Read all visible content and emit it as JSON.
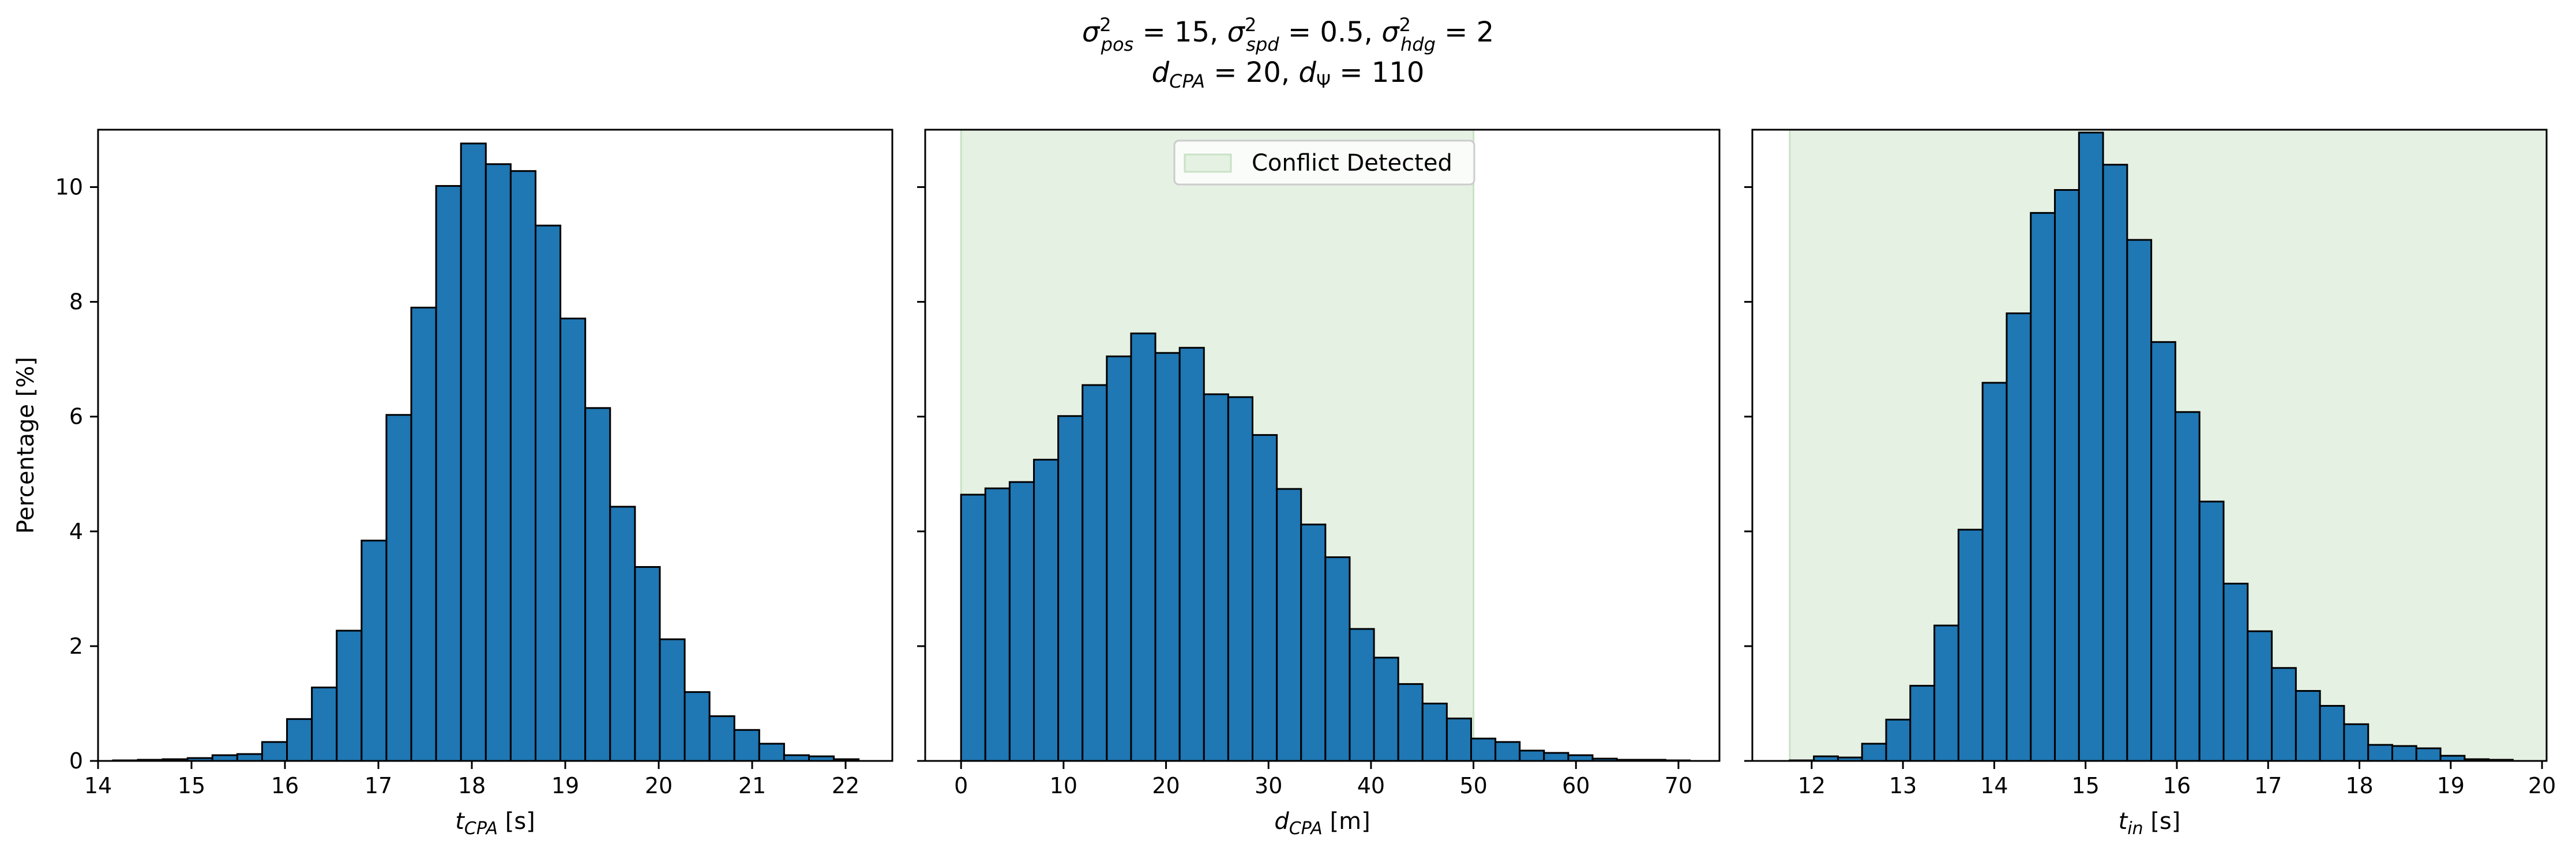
{
  "figure": {
    "title_line1": "σ²pos = 15, σ²spd = 0.5, σ²hdg = 2",
    "title_line2": "dCPA = 20, dΨ = 110"
  },
  "colors": {
    "bar_fill": "#1f77b4",
    "bar_edge": "#000000",
    "shade_fill": "#e5f1e3",
    "shade_edge": "#c9e2c6"
  },
  "chart_data": [
    {
      "type": "bar",
      "name": "tcpa-histogram",
      "xlabel": "tCPA [s]",
      "ylabel": "Percentage [%]",
      "xlim": [
        14.0,
        22.5
      ],
      "ylim": [
        0,
        11
      ],
      "xticks": [
        14,
        15,
        16,
        17,
        18,
        19,
        20,
        21,
        22
      ],
      "yticks": [
        0,
        2,
        4,
        6,
        8,
        10
      ],
      "bin_start": 14.16,
      "bin_width": 0.266,
      "values": [
        0.01,
        0.02,
        0.03,
        0.05,
        0.1,
        0.12,
        0.33,
        0.73,
        1.28,
        2.27,
        3.84,
        6.03,
        7.9,
        10.02,
        10.76,
        10.4,
        10.28,
        9.33,
        7.71,
        6.15,
        4.43,
        3.38,
        2.12,
        1.2,
        0.78,
        0.54,
        0.3,
        0.1,
        0.08,
        0.03
      ],
      "shade": null
    },
    {
      "type": "bar",
      "name": "dcpa-histogram",
      "xlabel": "dCPA [m]",
      "ylabel": "",
      "xlim": [
        -3.5,
        74.0
      ],
      "ylim": [
        0,
        11
      ],
      "xticks": [
        0,
        10,
        20,
        30,
        40,
        50,
        60,
        70
      ],
      "yticks": [
        0,
        2,
        4,
        6,
        8,
        10
      ],
      "bin_start": 0.0,
      "bin_width": 2.37,
      "values": [
        4.64,
        4.75,
        4.86,
        5.25,
        6.01,
        6.55,
        7.05,
        7.45,
        7.11,
        7.2,
        6.39,
        6.34,
        5.68,
        4.74,
        4.12,
        3.55,
        2.3,
        1.8,
        1.34,
        1.0,
        0.74,
        0.39,
        0.33,
        0.18,
        0.14,
        0.1,
        0.04,
        0.02,
        0.02,
        0.01
      ],
      "shade": {
        "start": 0,
        "end": 50,
        "label": "Conflict Detected"
      }
    },
    {
      "type": "bar",
      "name": "tin-histogram",
      "xlabel": "tin [s]",
      "ylabel": "",
      "xlim": [
        11.35,
        20.05
      ],
      "ylim": [
        0,
        11
      ],
      "xticks": [
        12,
        13,
        14,
        15,
        16,
        17,
        18,
        19,
        20
      ],
      "yticks": [
        0,
        2,
        4,
        6,
        8,
        10
      ],
      "bin_start": 11.76,
      "bin_width": 0.264,
      "values": [
        0.01,
        0.08,
        0.06,
        0.3,
        0.72,
        1.31,
        2.36,
        4.03,
        6.59,
        7.8,
        9.55,
        9.95,
        10.95,
        10.39,
        9.08,
        7.3,
        6.08,
        4.52,
        3.09,
        2.26,
        1.62,
        1.22,
        0.96,
        0.64,
        0.28,
        0.26,
        0.22,
        0.09,
        0.03,
        0.02
      ],
      "shade": {
        "start": 11.76,
        "end": 20.05,
        "label": ""
      }
    }
  ]
}
